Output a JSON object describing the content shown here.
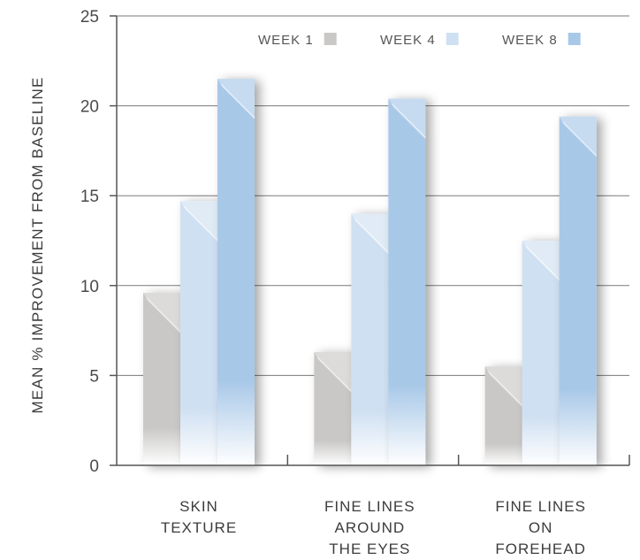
{
  "chart_data": {
    "type": "bar",
    "title": "",
    "xlabel": "",
    "ylabel": "MEAN % IMPROVEMENT FROM BASELINE",
    "ylim": [
      0,
      25
    ],
    "yticks": [
      0,
      5,
      10,
      15,
      20,
      25
    ],
    "categories": [
      [
        "SKIN",
        "TEXTURE"
      ],
      [
        "FINE LINES",
        "AROUND",
        "THE EYES"
      ],
      [
        "FINE LINES",
        "ON",
        "FOREHEAD"
      ]
    ],
    "series": [
      {
        "name": "WEEK 1",
        "color": "#c9c8c6",
        "values": [
          9.6,
          6.3,
          5.5
        ]
      },
      {
        "name": "WEEK 4",
        "color": "#cfe0f2",
        "values": [
          14.7,
          14.0,
          12.5
        ]
      },
      {
        "name": "WEEK 8",
        "color": "#a8c8e8",
        "values": [
          21.5,
          20.4,
          19.4
        ]
      }
    ],
    "legend_position": "top",
    "grid": "horizontal"
  }
}
